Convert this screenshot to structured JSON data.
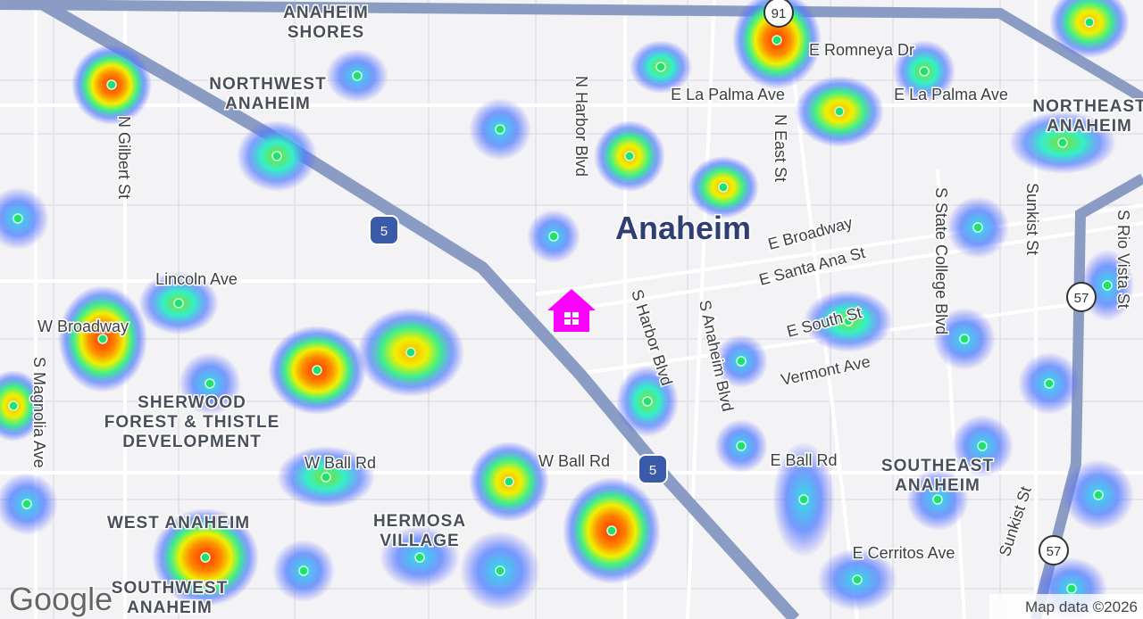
{
  "places": [
    {
      "lines": [
        "ANAHEIM",
        "SHORES"
      ]
    },
    {
      "lines": [
        "NORTHWEST",
        "ANAHEIM"
      ]
    },
    {
      "lines": [
        "NORTHEAST",
        "ANAHEIM"
      ]
    },
    {
      "lines": [
        "SHERWOOD",
        "FOREST & THISTLE",
        "DEVELOPMENT"
      ]
    },
    {
      "lines": [
        "WEST ANAHEIM"
      ]
    },
    {
      "lines": [
        "HERMOSA",
        "VILLAGE"
      ]
    },
    {
      "lines": [
        "SOUTHEAST",
        "ANAHEIM"
      ]
    },
    {
      "lines": [
        "SOUTHWEST",
        "ANAHEIM"
      ]
    }
  ],
  "city": "Anaheim",
  "streets": [
    "N Gilbert St",
    "N Harbor Blvd",
    "E Romneya Dr",
    "E La Palma Ave",
    "E La Palma Ave",
    "N East St",
    "S State College Blvd",
    "Sunkist St",
    "S Rio Vista St",
    "E Broadway",
    "E Santa Ana St",
    "Lincoln Ave",
    "W Broadway",
    "S Magnolia Ave",
    "S Harbor Blvd",
    "S Anaheim Blvd",
    "E South St",
    "Vermont Ave",
    "W Ball Rd",
    "W Ball Rd",
    "E Ball Rd",
    "E Cerritos Ave",
    "Sunkist St"
  ],
  "shields": [
    "5",
    "5",
    "57",
    "57",
    "91"
  ],
  "attribution": {
    "logo": "Google",
    "text": "Map data ©2026"
  }
}
